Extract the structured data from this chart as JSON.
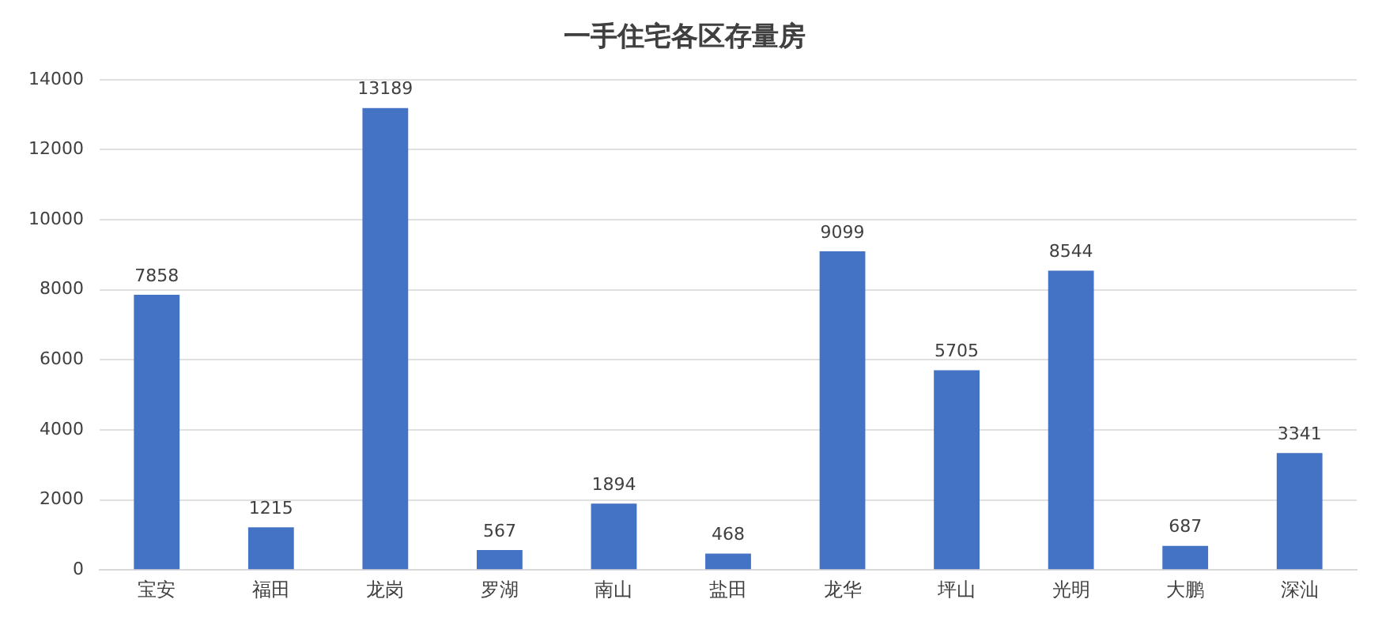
{
  "chart_data": {
    "type": "bar",
    "title": "一手住宅各区存量房",
    "categories": [
      "宝安",
      "福田",
      "龙岗",
      "罗湖",
      "南山",
      "盐田",
      "龙华",
      "坪山",
      "光明",
      "大鹏",
      "深汕"
    ],
    "values": [
      7858,
      1215,
      13189,
      567,
      1894,
      468,
      9099,
      5705,
      8544,
      687,
      3341
    ],
    "color": "#4472c4",
    "ylim": [
      0,
      14000
    ],
    "yticks": [
      0,
      2000,
      4000,
      6000,
      8000,
      10000,
      12000,
      14000
    ],
    "grid": "y",
    "data_labels": true
  }
}
